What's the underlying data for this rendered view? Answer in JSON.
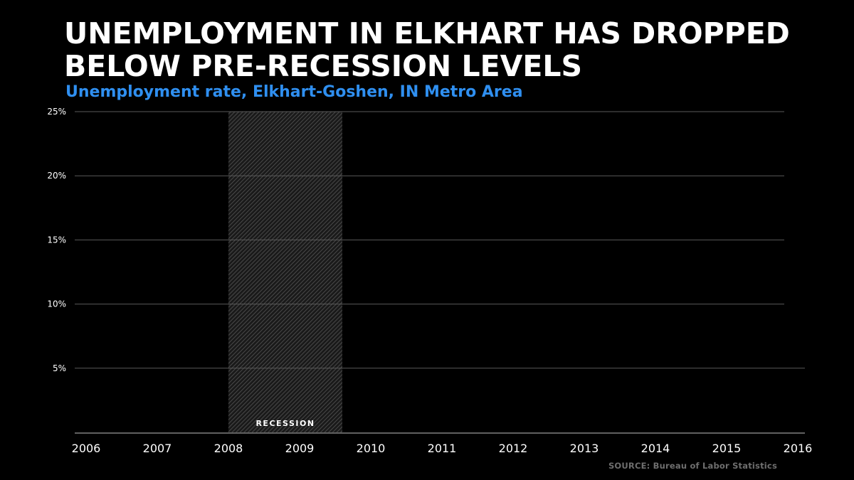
{
  "chart_data": {
    "type": "line",
    "title": "UNEMPLOYMENT IN ELKHART HAS DROPPED BELOW PRE-RECESSION LEVELS",
    "subtitle": "Unemployment rate, Elkhart-Goshen, IN Metro Area",
    "xlabel": "",
    "ylabel": "",
    "xlim": [
      2006,
      2016
    ],
    "ylim": [
      0,
      25
    ],
    "x_ticks": [
      "2006",
      "2007",
      "2008",
      "2009",
      "2010",
      "2011",
      "2012",
      "2013",
      "2014",
      "2015",
      "2016"
    ],
    "y_ticks": [
      {
        "value": 5,
        "label": "5%"
      },
      {
        "value": 10,
        "label": "10%"
      },
      {
        "value": 15,
        "label": "15%"
      },
      {
        "value": 20,
        "label": "20%"
      },
      {
        "value": 25,
        "label": "25%"
      }
    ],
    "grid": true,
    "recession": {
      "start": 2008.0,
      "end": 2009.6,
      "label": "RECESSION"
    },
    "series": [],
    "source": "SOURCE: Bureau of Labor Statistics"
  },
  "colors": {
    "background": "#000000",
    "title": "#ffffff",
    "subtitle": "#2f8ff0",
    "grid": "#5a5a5a",
    "axis": "#9a9a9a",
    "recession_hatch": "#4a4a4a",
    "source": "#6e6e6e"
  }
}
